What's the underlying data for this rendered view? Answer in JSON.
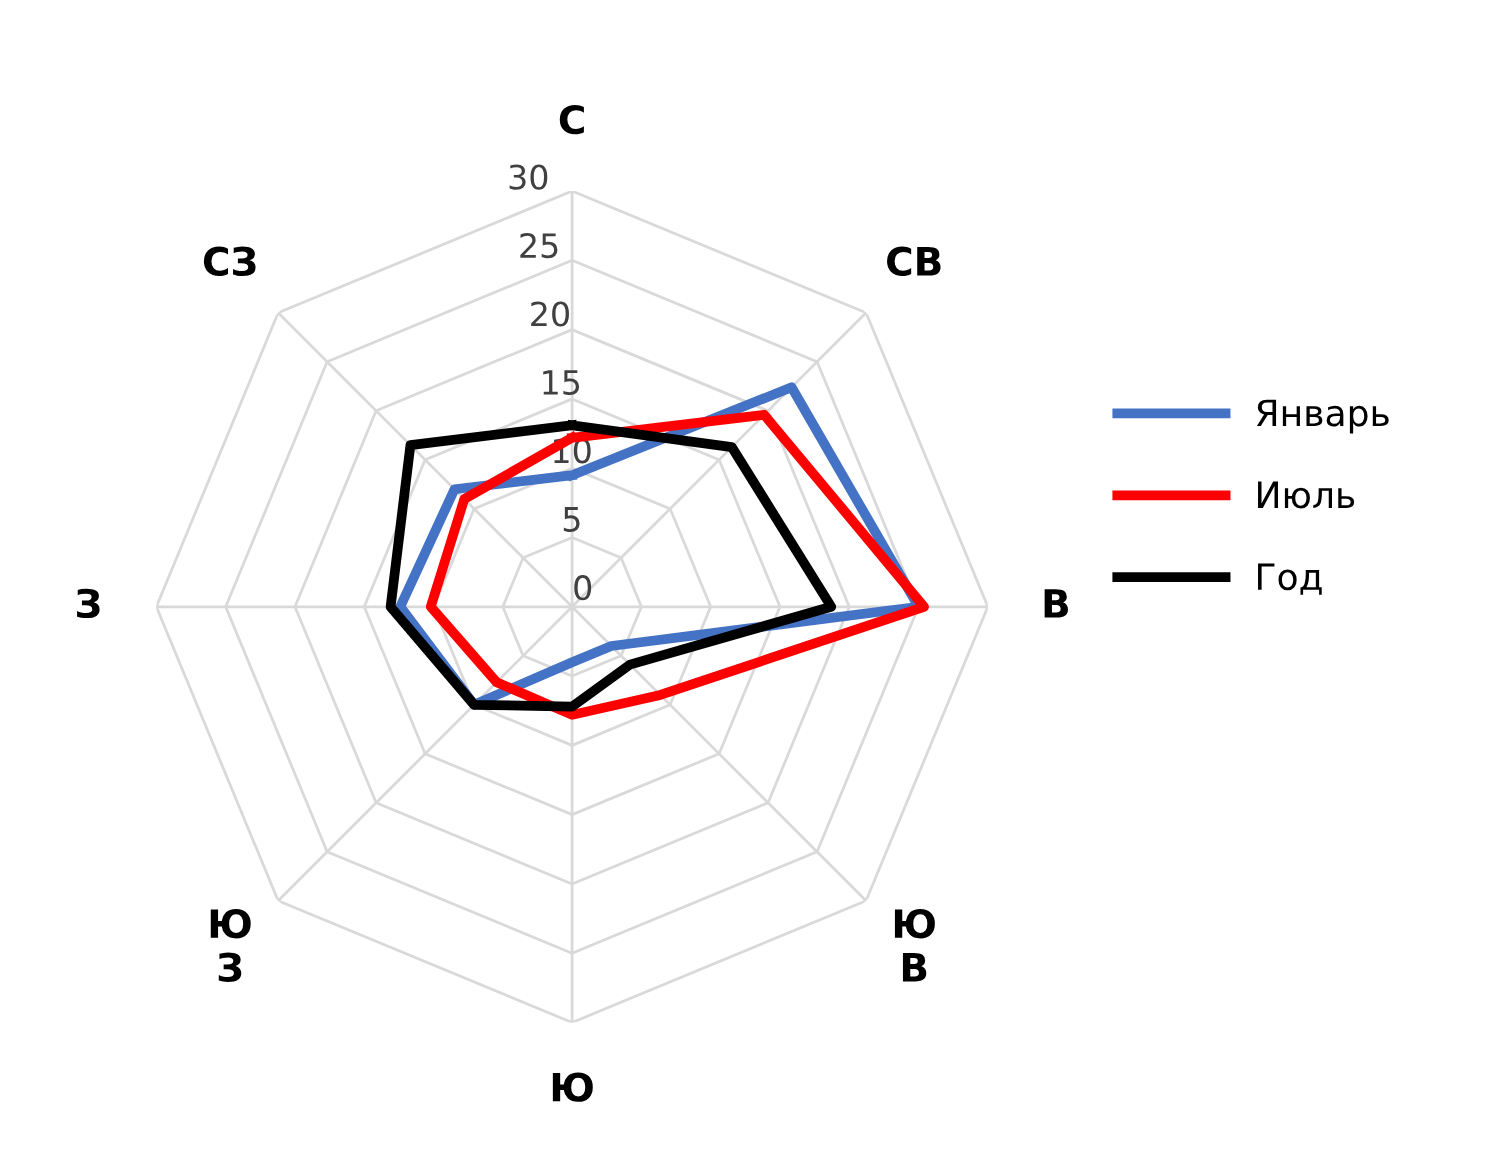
{
  "chart_data": {
    "type": "radar",
    "categories": [
      "С",
      "СВ",
      "В",
      "Ю\nВ",
      "Ю",
      "Ю\nЗ",
      "З",
      "СЗ"
    ],
    "series": [
      {
        "name": "Январь",
        "color": "#4472c4",
        "values": [
          9.5,
          22.4,
          25,
          4,
          4,
          10,
          12.4,
          12
        ]
      },
      {
        "name": "Июль",
        "color": "#ff0000",
        "values": [
          12.2,
          19.6,
          25.4,
          9,
          7.8,
          7.7,
          10.2,
          11
        ]
      },
      {
        "name": "Год",
        "color": "#000000",
        "values": [
          13.1,
          16.3,
          18.7,
          5.9,
          7.2,
          10,
          13.1,
          16.5
        ]
      }
    ],
    "ylim": [
      0,
      30
    ],
    "yticks": [
      0,
      5,
      10,
      15,
      20,
      25,
      30
    ],
    "grid": true,
    "legend": "right",
    "marker": "none",
    "line_style": "solid"
  }
}
